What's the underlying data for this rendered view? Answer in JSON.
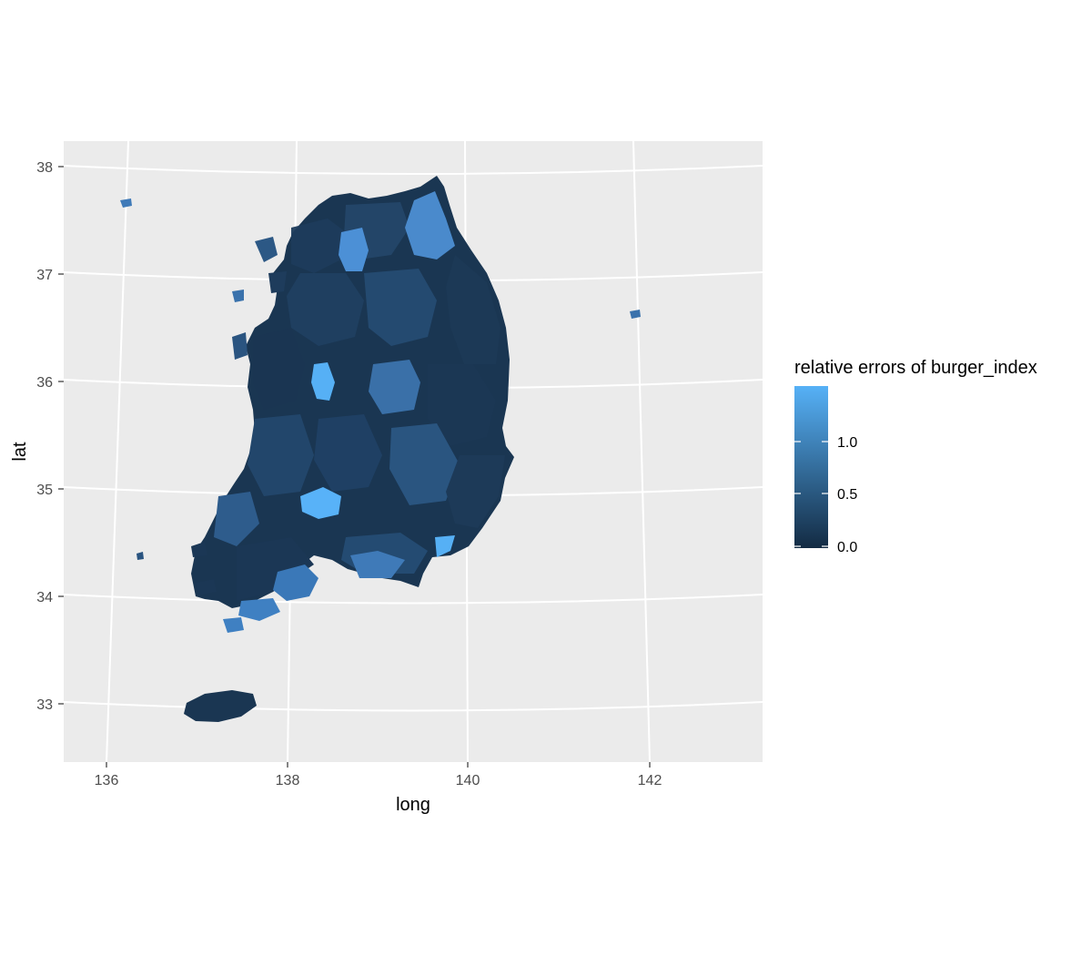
{
  "chart_data": {
    "type": "choropleth_map",
    "title": "",
    "xlabel": "long",
    "ylabel": "lat",
    "x_ticks": [
      "136",
      "138",
      "140",
      "142"
    ],
    "y_ticks": [
      "33",
      "34",
      "35",
      "36",
      "37",
      "38"
    ],
    "xlim": [
      135.5,
      143.3
    ],
    "ylim": [
      32.45,
      38.25
    ],
    "legend": {
      "title": "relative errors of burger_index",
      "labels": [
        "0.0",
        "0.5",
        "1.0"
      ],
      "values": [
        0.0,
        0.5,
        1.0
      ],
      "range": [
        0.0,
        1.5
      ],
      "color_low": "#132b43",
      "color_high": "#56b1f7",
      "placement": "right"
    },
    "background_color": "#ebebeb",
    "grid_color": "#ffffff",
    "highlighted_regions": [
      {
        "value": 1.5
      },
      {
        "value": 1.45
      },
      {
        "value": 1.2
      },
      {
        "value": 0.85
      },
      {
        "value": 0.8
      },
      {
        "value": 0.75
      }
    ]
  }
}
